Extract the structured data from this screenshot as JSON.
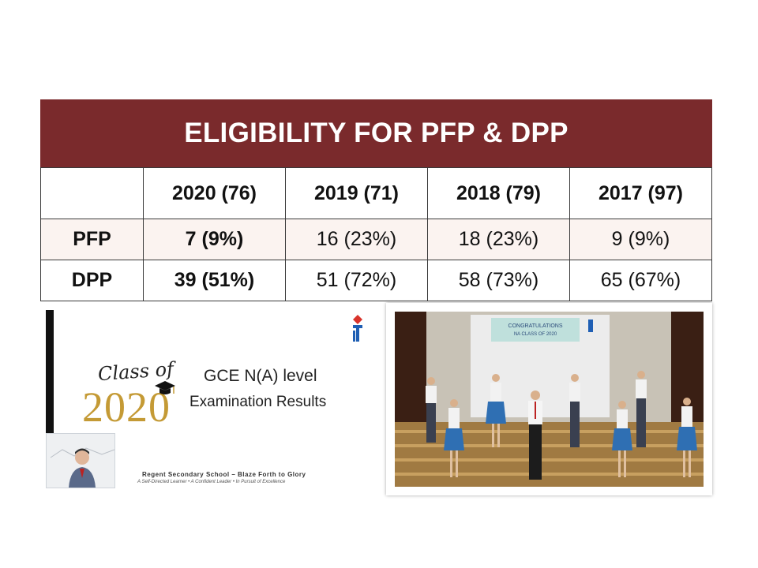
{
  "title": "ELIGIBILITY FOR PFP & DPP",
  "table": {
    "headers": [
      "",
      "2020 (76)",
      "2019 (71)",
      "2018 (79)",
      "2017 (97)"
    ],
    "rows": [
      {
        "label": "PFP",
        "cells": [
          "7 (9%)",
          "16 (23%)",
          "18 (23%)",
          "9 (9%)"
        ]
      },
      {
        "label": "DPP",
        "cells": [
          "39 (51%)",
          "51 (72%)",
          "58 (73%)",
          "65 (67%)"
        ]
      }
    ]
  },
  "slide": {
    "class_of": "Class of",
    "year": "2020",
    "line1": "GCE N(A) level",
    "line2": "Examination Results",
    "school": "Regent Secondary School – Blaze Forth to Glory",
    "motto": "A Self-Directed Learner • A Confident Leader • In Pursuit of Excellence"
  },
  "photo": {
    "banner_line1": "CONGRATULATIONS",
    "banner_line2": "NA CLASS OF 2020"
  },
  "colors": {
    "title_bg": "#7a2a2c",
    "alt_row": "#fbf3f0",
    "gold": "#c49a35",
    "stage_floor": "#b08a4c",
    "uniform_skirt": "#2f6fb3"
  }
}
